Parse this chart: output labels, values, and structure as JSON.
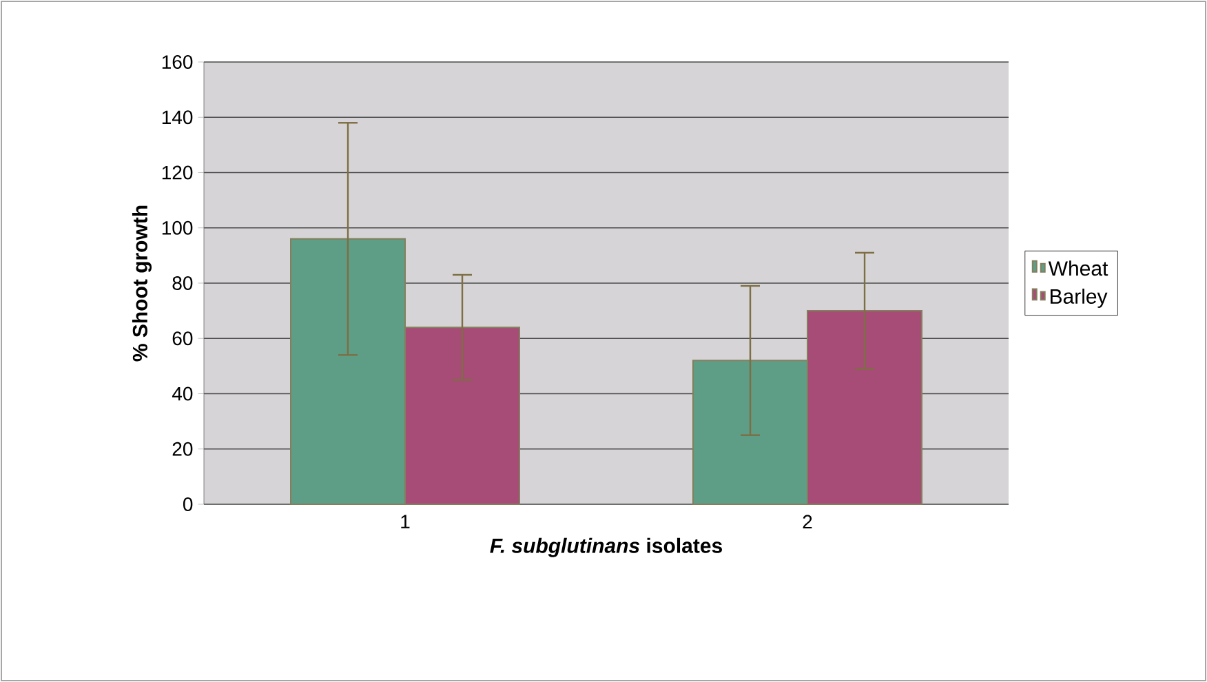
{
  "chart_data": {
    "type": "bar",
    "xlabel": "*F. subglutinans* isolates",
    "ylabel": "% Shoot growth",
    "categories": [
      "1",
      "2"
    ],
    "series": [
      {
        "name": "Wheat",
        "color": "#5f9e86",
        "values": [
          96,
          52
        ],
        "errors": [
          42,
          27
        ]
      },
      {
        "name": "Barley",
        "color": "#a64c76",
        "values": [
          64,
          70
        ],
        "errors": [
          19,
          21
        ]
      }
    ],
    "ylim": [
      0,
      160
    ],
    "yticks": [
      0,
      20,
      40,
      60,
      80,
      100,
      120,
      140,
      160
    ],
    "grid": "y",
    "legend": "right"
  }
}
